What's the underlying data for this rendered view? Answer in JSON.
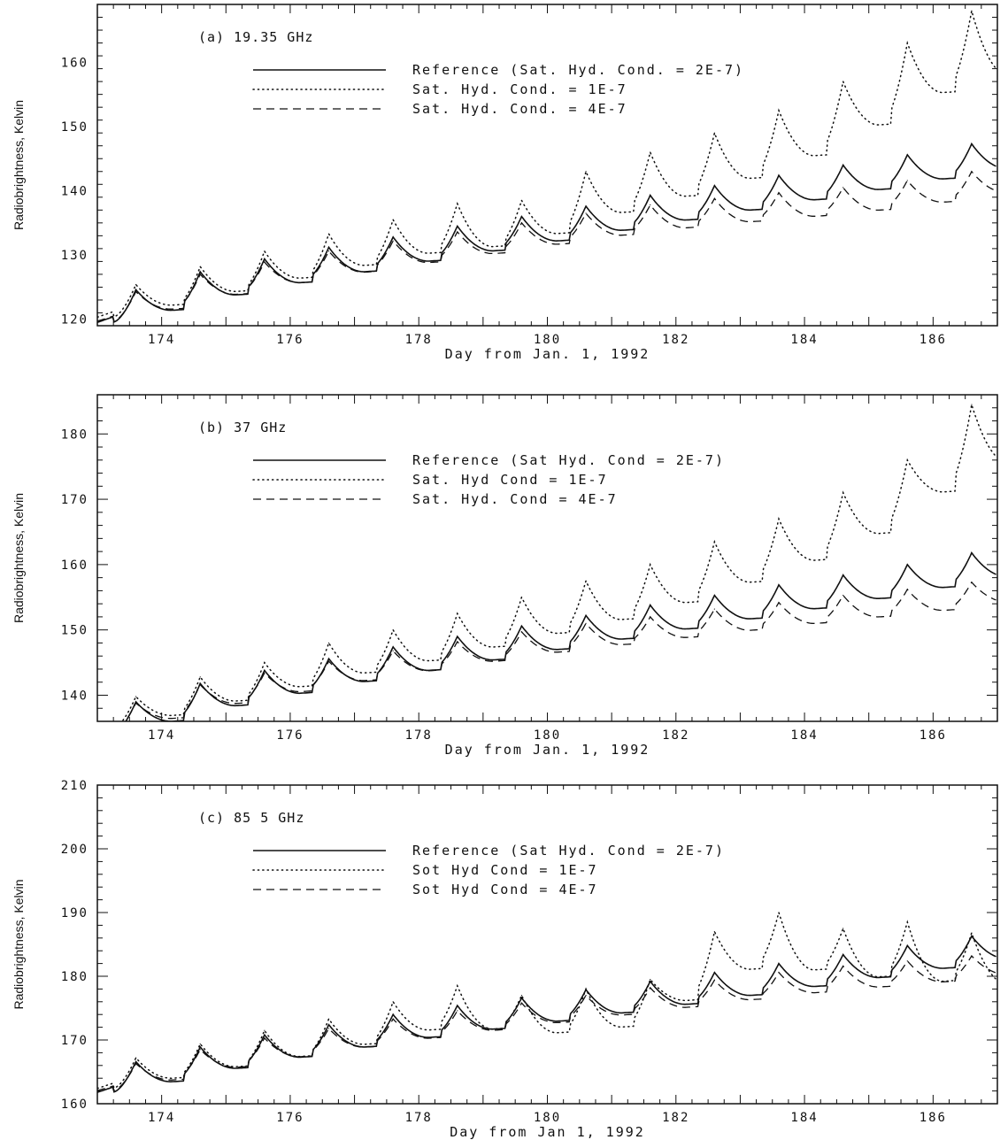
{
  "chart_data": [
    {
      "type": "line",
      "title": "(a) 19.35 GHz",
      "xlabel": "Day from Jan. 1, 1992",
      "ylabel": "Radiobrightness, Kelvin",
      "xlim": [
        173,
        187
      ],
      "ylim": [
        119,
        169
      ],
      "xticks": [
        174,
        176,
        178,
        180,
        182,
        184,
        186
      ],
      "yticks": [
        120,
        130,
        140,
        150,
        160
      ],
      "legend": "top-center",
      "base": 124.5,
      "slope": 1.6,
      "peak_amp": 3.8,
      "dip": -0.8,
      "dot_extra": [
        1,
        1.4
      ],
      "dash_scale": 0.86,
      "series": [
        {
          "name": "Reference (Sat. Hyd. Cond. = 2E-7)",
          "style": "solid",
          "peaks": [
            [
              173.6,
              124.6
            ],
            [
              174.6,
              127.4
            ],
            [
              175.6,
              129.4
            ],
            [
              176.6,
              131.2
            ],
            [
              177.6,
              132.8
            ],
            [
              178.6,
              134.5
            ],
            [
              179.6,
              136.0
            ],
            [
              180.6,
              137.6
            ],
            [
              181.6,
              139.3
            ],
            [
              182.6,
              140.8
            ],
            [
              183.6,
              142.4
            ],
            [
              184.6,
              144.0
            ],
            [
              185.6,
              145.6
            ],
            [
              186.6,
              147.3
            ]
          ]
        },
        {
          "name": "Sat. Hyd. Cond. = 1E-7",
          "style": "dotted",
          "peaks": [
            [
              173.6,
              125.4
            ],
            [
              174.6,
              128.2
            ],
            [
              175.6,
              130.6
            ],
            [
              176.6,
              133.3
            ],
            [
              177.6,
              135.5
            ],
            [
              178.6,
              138.0
            ],
            [
              179.6,
              138.5
            ],
            [
              180.6,
              143.0
            ],
            [
              181.6,
              146.0
            ],
            [
              182.6,
              149.0
            ],
            [
              183.6,
              152.5
            ],
            [
              184.6,
              157.0
            ],
            [
              185.6,
              163.0
            ],
            [
              186.6,
              168.0
            ]
          ]
        },
        {
          "name": "Sat. Hyd. Cond. = 4E-7",
          "style": "dashed",
          "peaks": [
            [
              173.6,
              124.3
            ],
            [
              174.6,
              127.0
            ],
            [
              175.6,
              128.9
            ],
            [
              176.6,
              130.6
            ],
            [
              177.6,
              132.2
            ],
            [
              178.6,
              133.6
            ],
            [
              179.6,
              135.0
            ],
            [
              180.6,
              136.5
            ],
            [
              181.6,
              137.8
            ],
            [
              182.6,
              138.8
            ],
            [
              183.6,
              139.7
            ],
            [
              184.6,
              140.5
            ],
            [
              185.6,
              141.6
            ],
            [
              186.6,
              143.0
            ]
          ]
        }
      ]
    },
    {
      "type": "line",
      "title": "(b) 37 GHz",
      "xlabel": "Day from Jan. 1, 1992",
      "ylabel": "Radiobrightness, Kelvin",
      "xlim": [
        173,
        187
      ],
      "ylim": [
        136,
        186
      ],
      "xticks": [
        174,
        176,
        178,
        180,
        182,
        184,
        186
      ],
      "yticks": [
        140,
        150,
        160,
        170,
        180
      ],
      "legend": "top-center",
      "base": 139,
      "slope": 1.55,
      "peak_amp": 3.2,
      "dip": -1.2,
      "dot_extra": [
        0.8,
        1.5
      ],
      "dash_scale": 0.8,
      "series": [
        {
          "name": "Reference (Sat Hyd. Cond = 2E-7)",
          "style": "solid",
          "peaks": [
            [
              173.6,
              139.0
            ],
            [
              174.6,
              141.8
            ],
            [
              175.6,
              143.8
            ],
            [
              176.6,
              145.6
            ],
            [
              177.6,
              147.4
            ],
            [
              178.6,
              149.0
            ],
            [
              179.6,
              150.6
            ],
            [
              180.6,
              152.2
            ],
            [
              181.6,
              153.8
            ],
            [
              182.6,
              155.3
            ],
            [
              183.6,
              156.9
            ],
            [
              184.6,
              158.4
            ],
            [
              185.6,
              160.0
            ],
            [
              186.6,
              161.8
            ]
          ]
        },
        {
          "name": "Sat. Hyd Cond = 1E-7",
          "style": "dotted",
          "peaks": [
            [
              173.6,
              139.8
            ],
            [
              174.6,
              142.8
            ],
            [
              175.6,
              145.0
            ],
            [
              176.6,
              148.0
            ],
            [
              177.6,
              150.0
            ],
            [
              178.6,
              152.5
            ],
            [
              179.6,
              155.0
            ],
            [
              180.6,
              157.5
            ],
            [
              181.6,
              160.0
            ],
            [
              182.6,
              163.5
            ],
            [
              183.6,
              167.0
            ],
            [
              184.6,
              171.0
            ],
            [
              185.6,
              176.0
            ],
            [
              186.6,
              184.5
            ]
          ]
        },
        {
          "name": "Sat. Hyd. Cond = 4E-7",
          "style": "dashed",
          "peaks": [
            [
              173.6,
              138.8
            ],
            [
              174.6,
              141.6
            ],
            [
              175.6,
              143.4
            ],
            [
              176.6,
              145.2
            ],
            [
              177.6,
              146.8
            ],
            [
              178.6,
              148.2
            ],
            [
              179.6,
              149.7
            ],
            [
              180.6,
              151.0
            ],
            [
              181.6,
              152.0
            ],
            [
              182.6,
              153.2
            ],
            [
              183.6,
              154.2
            ],
            [
              184.6,
              155.3
            ],
            [
              185.6,
              156.2
            ],
            [
              186.6,
              157.3
            ]
          ]
        }
      ]
    },
    {
      "type": "line",
      "title": "(c) 85 5 GHz",
      "xlabel": "Day from Jan 1, 1992",
      "ylabel": "Radiobrightness, Kelvin",
      "xlim": [
        173,
        187
      ],
      "ylim": [
        160,
        210
      ],
      "xticks": [
        174,
        176,
        178,
        180,
        182,
        184,
        186
      ],
      "yticks": [
        160,
        170,
        180,
        190,
        200,
        210
      ],
      "legend": "top-center",
      "base": 164,
      "slope": 1.5,
      "peak_amp": 2.8,
      "dip": -1.5,
      "dot_extra": [
        0.8,
        1.5
      ],
      "dash_scale": 0.78,
      "series": [
        {
          "name": "Reference (Sat Hyd. Cond = 2E-7)",
          "style": "solid",
          "peaks": [
            [
              173.6,
              166.6
            ],
            [
              174.6,
              168.9
            ],
            [
              175.6,
              170.8
            ],
            [
              176.6,
              172.4
            ],
            [
              177.6,
              174.0
            ],
            [
              178.6,
              175.4
            ],
            [
              179.6,
              176.6
            ],
            [
              180.6,
              177.9
            ],
            [
              181.6,
              179.2
            ],
            [
              182.6,
              180.6
            ],
            [
              183.6,
              182.0
            ],
            [
              184.6,
              183.4
            ],
            [
              185.6,
              184.8
            ],
            [
              186.6,
              186.3
            ]
          ]
        },
        {
          "name": "Sot Hyd Cond = 1E-7",
          "style": "dotted",
          "peaks": [
            [
              173.6,
              167.2
            ],
            [
              174.6,
              169.4
            ],
            [
              175.6,
              171.5
            ],
            [
              176.6,
              173.3
            ],
            [
              177.6,
              176.0
            ],
            [
              178.6,
              178.5
            ],
            [
              179.6,
              177.0
            ],
            [
              180.6,
              178.0
            ],
            [
              181.6,
              179.5
            ],
            [
              182.6,
              187.0
            ],
            [
              183.6,
              190.0
            ],
            [
              184.6,
              187.5
            ],
            [
              185.6,
              188.5
            ],
            [
              186.6,
              186.8
            ]
          ]
        },
        {
          "name": "Sot Hyd Cond = 4E-7",
          "style": "dashed",
          "peaks": [
            [
              173.6,
              166.3
            ],
            [
              174.6,
              168.5
            ],
            [
              175.6,
              170.3
            ],
            [
              176.6,
              171.8
            ],
            [
              177.6,
              173.3
            ],
            [
              178.6,
              174.6
            ],
            [
              179.6,
              175.8
            ],
            [
              180.6,
              177.0
            ],
            [
              181.6,
              178.2
            ],
            [
              182.6,
              179.4
            ],
            [
              183.6,
              180.6
            ],
            [
              184.6,
              181.6
            ],
            [
              185.6,
              182.4
            ],
            [
              186.6,
              183.2
            ]
          ]
        }
      ]
    }
  ]
}
